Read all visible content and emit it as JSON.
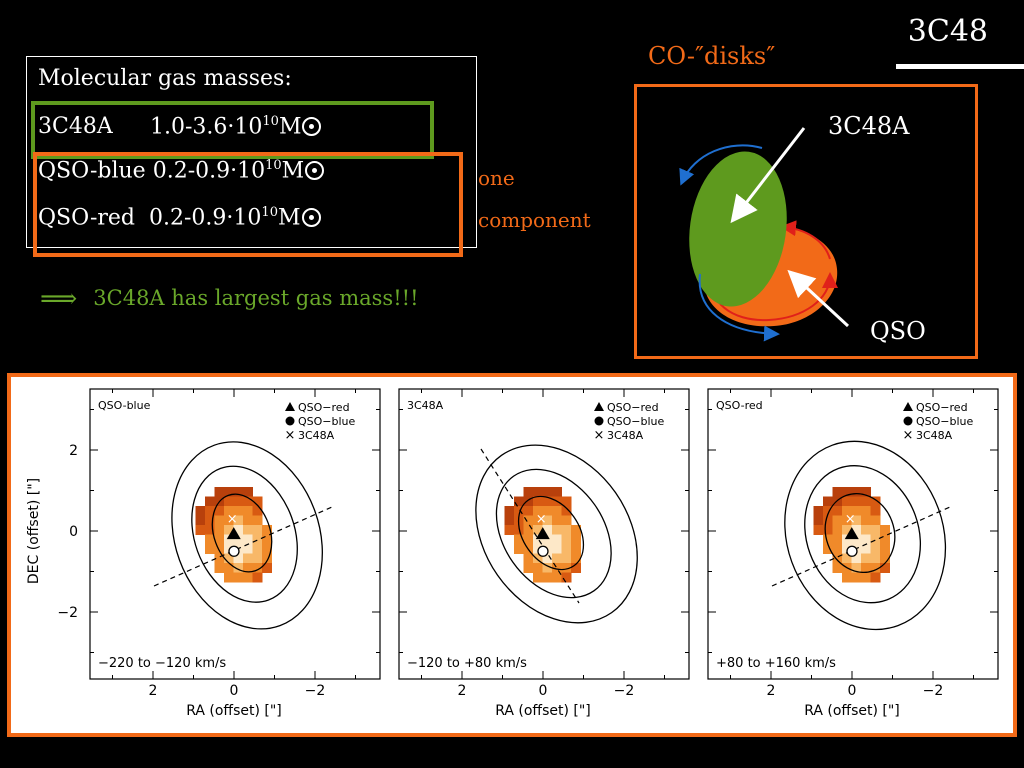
{
  "slide": {
    "title": "3C48"
  },
  "masses": {
    "heading": "Molecular gas masses:",
    "rows": [
      {
        "name": "3C48A",
        "value": "1.0-3.6·10",
        "exp": "10",
        "unit": "M"
      },
      {
        "name": "QSO-blue",
        "value": "0.2-0.9·10",
        "exp": "10",
        "unit": "M"
      },
      {
        "name": "QSO-red",
        "value": "0.2-0.9·10",
        "exp": "10",
        "unit": "M"
      }
    ]
  },
  "component_note": {
    "line1": "one",
    "line2": "component"
  },
  "conclusion": {
    "arrow": "⟹",
    "text": "3C48A has largest gas mass!!!"
  },
  "co_disks": {
    "title": "CO-″disks″",
    "label_3c48a": "3C48A",
    "label_qso": "QSO"
  },
  "colors": {
    "green": "#5e9a1e",
    "orange": "#f26a18",
    "blue": "#1f6fd0",
    "red": "#e0201a"
  },
  "panels": [
    {
      "name": "QSO-blue",
      "velocity": "−220 to −120 km/s"
    },
    {
      "name": "3C48A",
      "velocity": "−120 to +80 km/s"
    },
    {
      "name": "QSO-red",
      "velocity": "+80 to +160 km/s"
    }
  ],
  "legend": [
    "QSO−red",
    "QSO−blue",
    "3C48A"
  ],
  "axes": {
    "xlabel": "RA   (offset)  [\"]",
    "ylabel": "DEC   (offset)  [\"]",
    "xticks": [
      "2",
      "0",
      "−2"
    ],
    "yticks": [
      "2",
      "0",
      "−2"
    ]
  }
}
